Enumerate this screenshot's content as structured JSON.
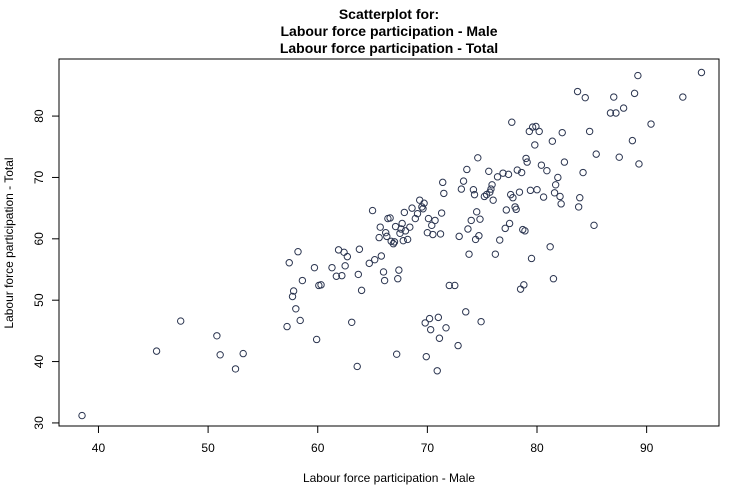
{
  "chart_data": {
    "type": "scatter",
    "title": [
      "Scatterplot for:",
      "Labour force participation - Male",
      "Labour force participation - Total"
    ],
    "xlabel": "Labour force participation - Male",
    "ylabel": "Labour force participation - Total",
    "xlim": [
      36.4,
      96.6
    ],
    "ylim": [
      29.5,
      89.3
    ],
    "xticks": [
      40,
      50,
      60,
      70,
      80,
      90
    ],
    "yticks": [
      30,
      40,
      50,
      60,
      70,
      80
    ],
    "grid": false,
    "marker": "open-circle",
    "point_color": "#2b3550",
    "points": [
      [
        38.5,
        31.2
      ],
      [
        45.3,
        41.7
      ],
      [
        47.5,
        46.6
      ],
      [
        50.8,
        44.2
      ],
      [
        51.1,
        41.1
      ],
      [
        52.5,
        38.8
      ],
      [
        53.2,
        41.3
      ],
      [
        57.2,
        45.7
      ],
      [
        57.4,
        56.1
      ],
      [
        57.7,
        50.6
      ],
      [
        57.8,
        51.5
      ],
      [
        58.0,
        48.6
      ],
      [
        58.2,
        57.9
      ],
      [
        58.4,
        46.7
      ],
      [
        58.6,
        53.2
      ],
      [
        59.7,
        55.3
      ],
      [
        59.9,
        43.6
      ],
      [
        60.1,
        52.4
      ],
      [
        60.3,
        52.5
      ],
      [
        61.3,
        55.3
      ],
      [
        61.7,
        53.9
      ],
      [
        61.9,
        58.2
      ],
      [
        62.2,
        54.0
      ],
      [
        62.4,
        57.8
      ],
      [
        62.5,
        55.6
      ],
      [
        62.7,
        57.1
      ],
      [
        63.1,
        46.4
      ],
      [
        63.6,
        39.2
      ],
      [
        63.7,
        54.2
      ],
      [
        63.8,
        58.3
      ],
      [
        64.0,
        51.6
      ],
      [
        64.7,
        56.0
      ],
      [
        65.0,
        64.6
      ],
      [
        65.2,
        56.6
      ],
      [
        65.6,
        60.2
      ],
      [
        65.7,
        61.9
      ],
      [
        65.8,
        57.2
      ],
      [
        66.0,
        54.6
      ],
      [
        66.1,
        53.2
      ],
      [
        66.2,
        61.0
      ],
      [
        66.3,
        60.4
      ],
      [
        66.4,
        63.3
      ],
      [
        66.6,
        63.4
      ],
      [
        66.7,
        59.6
      ],
      [
        66.9,
        59.2
      ],
      [
        67.0,
        59.5
      ],
      [
        67.1,
        62.0
      ],
      [
        67.2,
        41.2
      ],
      [
        67.3,
        53.5
      ],
      [
        67.4,
        54.9
      ],
      [
        67.5,
        60.9
      ],
      [
        67.6,
        61.6
      ],
      [
        67.7,
        62.5
      ],
      [
        67.8,
        59.7
      ],
      [
        67.9,
        64.3
      ],
      [
        68.0,
        61.3
      ],
      [
        68.2,
        59.9
      ],
      [
        68.4,
        61.9
      ],
      [
        68.6,
        65.0
      ],
      [
        68.9,
        63.3
      ],
      [
        69.1,
        64.1
      ],
      [
        69.3,
        66.3
      ],
      [
        69.5,
        65.2
      ],
      [
        69.6,
        64.9
      ],
      [
        69.7,
        65.8
      ],
      [
        69.8,
        46.3
      ],
      [
        69.9,
        40.8
      ],
      [
        70.0,
        61.0
      ],
      [
        70.1,
        63.3
      ],
      [
        70.2,
        47.0
      ],
      [
        70.3,
        45.2
      ],
      [
        70.4,
        62.2
      ],
      [
        70.5,
        60.7
      ],
      [
        70.7,
        63.0
      ],
      [
        70.9,
        38.5
      ],
      [
        71.0,
        47.2
      ],
      [
        71.1,
        43.8
      ],
      [
        71.2,
        60.8
      ],
      [
        71.3,
        64.2
      ],
      [
        71.4,
        69.2
      ],
      [
        71.5,
        67.4
      ],
      [
        71.7,
        45.5
      ],
      [
        72.0,
        52.4
      ],
      [
        72.5,
        52.4
      ],
      [
        72.8,
        42.6
      ],
      [
        72.9,
        60.4
      ],
      [
        73.1,
        68.1
      ],
      [
        73.3,
        69.4
      ],
      [
        73.5,
        48.1
      ],
      [
        73.6,
        71.3
      ],
      [
        73.7,
        61.6
      ],
      [
        73.8,
        57.5
      ],
      [
        74.0,
        63.0
      ],
      [
        74.2,
        68.0
      ],
      [
        74.3,
        67.2
      ],
      [
        74.4,
        59.9
      ],
      [
        74.5,
        64.4
      ],
      [
        74.6,
        73.2
      ],
      [
        74.7,
        60.5
      ],
      [
        74.8,
        63.2
      ],
      [
        74.9,
        46.5
      ],
      [
        75.2,
        66.9
      ],
      [
        75.4,
        67.2
      ],
      [
        75.6,
        71.0
      ],
      [
        75.7,
        67.6
      ],
      [
        75.8,
        68.1
      ],
      [
        75.9,
        68.8
      ],
      [
        76.0,
        66.3
      ],
      [
        76.2,
        57.5
      ],
      [
        76.4,
        70.1
      ],
      [
        76.6,
        59.8
      ],
      [
        76.9,
        70.7
      ],
      [
        77.1,
        61.7
      ],
      [
        77.2,
        64.7
      ],
      [
        77.4,
        70.5
      ],
      [
        77.5,
        62.5
      ],
      [
        77.6,
        67.2
      ],
      [
        77.7,
        79.0
      ],
      [
        77.8,
        66.7
      ],
      [
        78.0,
        65.2
      ],
      [
        78.1,
        64.8
      ],
      [
        78.2,
        71.2
      ],
      [
        78.4,
        67.6
      ],
      [
        78.5,
        51.8
      ],
      [
        78.6,
        70.8
      ],
      [
        78.7,
        61.5
      ],
      [
        78.8,
        52.5
      ],
      [
        78.9,
        61.3
      ],
      [
        79.0,
        73.1
      ],
      [
        79.1,
        72.5
      ],
      [
        79.3,
        77.5
      ],
      [
        79.4,
        67.9
      ],
      [
        79.5,
        56.8
      ],
      [
        79.6,
        78.2
      ],
      [
        79.8,
        75.3
      ],
      [
        79.9,
        78.3
      ],
      [
        80.0,
        68.0
      ],
      [
        80.2,
        77.5
      ],
      [
        80.4,
        72.0
      ],
      [
        80.6,
        66.8
      ],
      [
        80.9,
        71.1
      ],
      [
        81.2,
        58.7
      ],
      [
        81.4,
        75.9
      ],
      [
        81.5,
        53.5
      ],
      [
        81.6,
        67.5
      ],
      [
        81.7,
        68.8
      ],
      [
        81.9,
        70.0
      ],
      [
        82.1,
        66.9
      ],
      [
        82.2,
        65.7
      ],
      [
        82.3,
        77.3
      ],
      [
        82.5,
        72.5
      ],
      [
        83.7,
        84.0
      ],
      [
        83.8,
        65.2
      ],
      [
        83.9,
        66.7
      ],
      [
        84.2,
        70.8
      ],
      [
        84.4,
        83.0
      ],
      [
        84.8,
        77.5
      ],
      [
        85.2,
        62.2
      ],
      [
        85.4,
        73.8
      ],
      [
        86.7,
        80.5
      ],
      [
        87.0,
        83.1
      ],
      [
        87.2,
        80.5
      ],
      [
        87.5,
        73.3
      ],
      [
        87.9,
        81.3
      ],
      [
        88.7,
        76.0
      ],
      [
        88.9,
        83.7
      ],
      [
        89.2,
        86.6
      ],
      [
        89.3,
        72.2
      ],
      [
        90.4,
        78.7
      ],
      [
        93.3,
        83.1
      ],
      [
        95.0,
        87.1
      ]
    ]
  }
}
